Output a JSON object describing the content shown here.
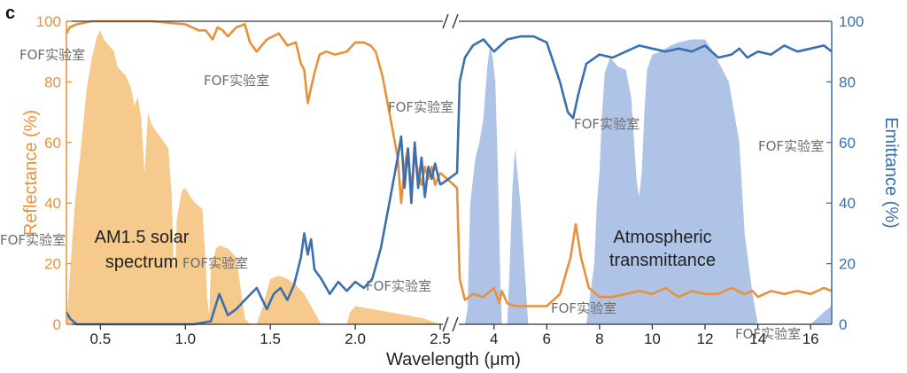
{
  "panel_label": "c",
  "colors": {
    "reflectance": "#e8913a",
    "emittance": "#3a6fb0",
    "solar_fill": "#f6c787",
    "atm_fill": "#aac0e4"
  },
  "watermarks": [
    "FOF实验室",
    "FOF实验室",
    "FOF实验室",
    "FOF实验室",
    "FOF实验室",
    "FOF实验室",
    "FOF实验室",
    "FOF实验室",
    "FOF实验室",
    "FOF实验室"
  ],
  "chart_data": {
    "type": "line",
    "xlabel": "Wavelength (μm)",
    "ylabel_left": "Reflectance (%)",
    "ylabel_right": "Emittance (%)",
    "ylim": [
      0,
      100
    ],
    "y_ticks": [
      "0",
      "20",
      "40",
      "60",
      "80",
      "100"
    ],
    "y_tick_values": [
      0,
      20,
      40,
      60,
      80,
      100
    ],
    "x_break": true,
    "segments": [
      {
        "xlim": [
          0.3,
          2.5
        ],
        "ticks": [
          0.5,
          1.0,
          1.5,
          2.0,
          2.5
        ],
        "tick_labels": [
          "0.5",
          "1.0",
          "1.5",
          "2.0",
          "2.5"
        ]
      },
      {
        "xlim": [
          2.5,
          16.8
        ],
        "ticks": [
          4,
          6,
          8,
          10,
          12,
          14,
          16
        ],
        "tick_labels": [
          "4",
          "6",
          "8",
          "10",
          "12",
          "14",
          "16"
        ]
      }
    ],
    "annotations": [
      {
        "lines": [
          "AM1.5 solar",
          "spectrum"
        ],
        "x": 0.62,
        "y": [
          30,
          20
        ]
      },
      {
        "lines": [
          "Atmospheric",
          "transmittance"
        ],
        "x": 9.9,
        "y": [
          30,
          21
        ]
      }
    ],
    "series": [
      {
        "name": "Reflectance",
        "axis": "left",
        "color": "#e8913a",
        "x": [
          0.3,
          0.32,
          0.36,
          0.45,
          0.6,
          0.8,
          1.0,
          1.08,
          1.12,
          1.16,
          1.19,
          1.22,
          1.25,
          1.3,
          1.35,
          1.38,
          1.42,
          1.48,
          1.55,
          1.6,
          1.65,
          1.68,
          1.7,
          1.72,
          1.74,
          1.76,
          1.79,
          1.83,
          1.88,
          1.95,
          2.0,
          2.05,
          2.09,
          2.12,
          2.16,
          2.2,
          2.25,
          2.27,
          2.29,
          2.31,
          2.33,
          2.35,
          2.37,
          2.39,
          2.41,
          2.43,
          2.45,
          2.47,
          2.5,
          2.6,
          2.7,
          2.9,
          3.2,
          3.6,
          4.0,
          4.2,
          4.3,
          4.5,
          4.8,
          5.2,
          5.6,
          6.0,
          6.5,
          6.9,
          7.1,
          7.3,
          7.6,
          8.0,
          8.5,
          9.0,
          9.5,
          10.0,
          10.5,
          11.0,
          11.5,
          12.0,
          12.5,
          13.0,
          13.5,
          13.8,
          14.0,
          14.5,
          15.0,
          15.5,
          16.0,
          16.5,
          16.8
        ],
        "y": [
          96,
          98,
          99,
          100,
          100,
          100,
          99,
          97,
          97,
          94,
          98,
          97,
          95,
          98,
          99,
          93,
          90,
          94,
          96,
          92,
          93,
          86,
          84,
          73,
          78,
          83,
          89,
          90,
          89,
          90,
          93,
          93,
          92,
          90,
          82,
          70,
          55,
          40,
          52,
          58,
          44,
          56,
          50,
          46,
          52,
          48,
          52,
          46,
          50,
          45,
          15,
          8,
          10,
          9,
          12,
          7,
          11,
          7,
          6,
          6,
          6,
          6,
          10,
          22,
          33,
          22,
          12,
          9,
          9,
          10,
          11,
          10,
          12,
          9,
          11,
          10,
          10,
          12,
          10,
          11,
          9,
          11,
          10,
          11,
          10,
          12,
          11
        ]
      },
      {
        "name": "Emittance",
        "axis": "right",
        "color": "#3a6fb0",
        "x": [
          0.3,
          0.32,
          0.36,
          0.4,
          0.5,
          0.7,
          0.9,
          1.05,
          1.15,
          1.2,
          1.25,
          1.3,
          1.35,
          1.42,
          1.48,
          1.52,
          1.56,
          1.6,
          1.64,
          1.68,
          1.7,
          1.72,
          1.74,
          1.76,
          1.8,
          1.85,
          1.9,
          1.95,
          2.0,
          2.05,
          2.1,
          2.15,
          2.2,
          2.25,
          2.27,
          2.29,
          2.31,
          2.33,
          2.35,
          2.37,
          2.39,
          2.41,
          2.43,
          2.45,
          2.47,
          2.5,
          2.6,
          2.7,
          2.9,
          3.2,
          3.6,
          4.0,
          4.5,
          5.0,
          5.5,
          6.0,
          6.5,
          6.8,
          7.0,
          7.2,
          7.5,
          8.0,
          8.5,
          9.0,
          9.5,
          10.0,
          10.5,
          11.0,
          11.5,
          12.0,
          12.5,
          13.0,
          13.3,
          13.6,
          14.0,
          14.5,
          15.0,
          15.5,
          16.0,
          16.5,
          16.8
        ],
        "y": [
          4,
          2,
          0,
          0,
          0,
          0,
          0,
          0,
          1,
          10,
          3,
          5,
          8,
          12,
          5,
          10,
          12,
          8,
          13,
          22,
          30,
          23,
          28,
          18,
          15,
          10,
          14,
          11,
          14,
          12,
          15,
          25,
          40,
          55,
          62,
          45,
          58,
          40,
          60,
          45,
          55,
          42,
          52,
          48,
          53,
          46,
          50,
          80,
          88,
          92,
          94,
          90,
          94,
          95,
          95,
          93,
          80,
          70,
          68,
          76,
          86,
          89,
          88,
          90,
          92,
          91,
          90,
          91,
          90,
          92,
          88,
          89,
          91,
          88,
          90,
          89,
          92,
          90,
          91,
          92,
          90
        ]
      }
    ],
    "fills": [
      {
        "name": "AM1.5 solar spectrum",
        "color": "#f6c787",
        "x": [
          0.3,
          0.35,
          0.38,
          0.42,
          0.45,
          0.48,
          0.5,
          0.52,
          0.55,
          0.58,
          0.6,
          0.65,
          0.68,
          0.7,
          0.72,
          0.74,
          0.76,
          0.78,
          0.8,
          0.85,
          0.9,
          0.92,
          0.93,
          0.94,
          0.95,
          0.98,
          1.0,
          1.03,
          1.06,
          1.1,
          1.12,
          1.13,
          1.14,
          1.15,
          1.18,
          1.2,
          1.25,
          1.3,
          1.33,
          1.35,
          1.38,
          1.42,
          1.45,
          1.5,
          1.55,
          1.6,
          1.65,
          1.7,
          1.75,
          1.78,
          1.8,
          1.85,
          1.95,
          1.97,
          2.0,
          2.1,
          2.2,
          2.3,
          2.4,
          2.45,
          2.5
        ],
        "y": [
          0,
          40,
          55,
          78,
          88,
          95,
          97,
          94,
          92,
          90,
          85,
          82,
          78,
          72,
          75,
          68,
          50,
          70,
          66,
          62,
          58,
          42,
          22,
          18,
          35,
          44,
          45,
          42,
          40,
          38,
          20,
          8,
          3,
          18,
          25,
          26,
          25,
          22,
          10,
          2,
          0,
          0,
          5,
          15,
          16,
          15,
          13,
          10,
          5,
          2,
          0,
          0,
          0,
          4,
          6,
          5,
          4,
          3,
          2,
          1,
          0
        ]
      },
      {
        "name": "Atmospheric transmittance",
        "color": "#aac0e4",
        "x": [
          2.5,
          2.9,
          3.0,
          3.1,
          3.3,
          3.45,
          3.6,
          3.75,
          3.85,
          3.95,
          4.05,
          4.15,
          4.25,
          4.3,
          4.35,
          4.45,
          4.5,
          4.6,
          4.7,
          4.8,
          5.0,
          5.3,
          6.0,
          7.0,
          7.5,
          7.8,
          7.9,
          8.0,
          8.1,
          8.2,
          8.4,
          8.7,
          9.0,
          9.2,
          9.4,
          9.5,
          9.6,
          9.7,
          9.8,
          10.0,
          10.3,
          10.7,
          11.0,
          11.5,
          12.0,
          12.3,
          12.6,
          12.9,
          13.1,
          13.3,
          13.5,
          13.8,
          14.0,
          14.5,
          15.0,
          16.0,
          16.5,
          16.8
        ],
        "y": [
          0,
          0,
          5,
          40,
          55,
          60,
          68,
          85,
          92,
          88,
          80,
          50,
          12,
          0,
          0,
          0,
          0,
          20,
          45,
          58,
          40,
          0,
          0,
          0,
          0,
          20,
          40,
          50,
          70,
          83,
          88,
          85,
          84,
          75,
          48,
          42,
          50,
          70,
          84,
          89,
          90,
          92,
          93,
          94,
          94,
          90,
          85,
          80,
          70,
          60,
          30,
          10,
          0,
          0,
          0,
          0,
          4,
          6
        ]
      }
    ]
  }
}
